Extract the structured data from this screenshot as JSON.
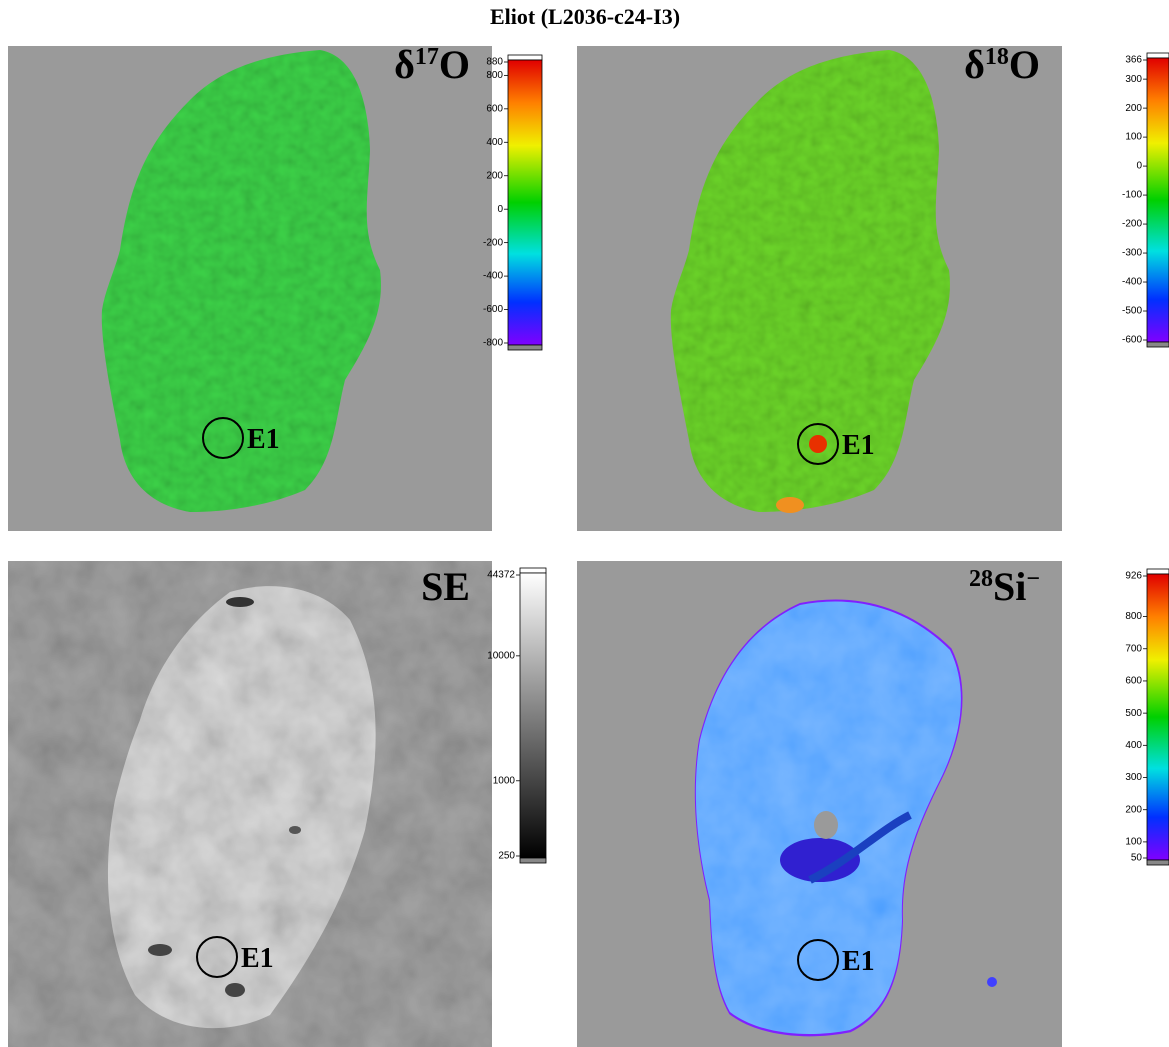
{
  "title": "Eliot (L2036-c24-I3)",
  "panels": [
    {
      "label": {
        "pre": "δ",
        "pre_sup": "17",
        "main": "O"
      },
      "marker": "E1",
      "colorbar": {
        "scale": "linear",
        "colors": "rainbow",
        "ticks": [
          880,
          800,
          600,
          400,
          200,
          0,
          -200,
          -400,
          -600,
          -800
        ]
      }
    },
    {
      "label": {
        "pre": "δ",
        "pre_sup": "18",
        "main": "O"
      },
      "marker": "E1",
      "colorbar": {
        "scale": "linear",
        "colors": "rainbow",
        "ticks": [
          366,
          300,
          200,
          100,
          0,
          -100,
          -200,
          -300,
          -400,
          -500,
          -600
        ]
      }
    },
    {
      "label": {
        "main": "SE"
      },
      "marker": "E1",
      "colorbar": {
        "scale": "log",
        "colors": "gray",
        "ticks": [
          44372,
          10000,
          1000,
          250
        ]
      }
    },
    {
      "label": {
        "pre_sup": "28",
        "main": "Si",
        "post_sup": "−"
      },
      "marker": "E1",
      "colorbar": {
        "scale": "linear",
        "colors": "rainbow",
        "ticks": [
          926,
          800,
          700,
          600,
          500,
          400,
          300,
          200,
          100,
          50
        ]
      }
    }
  ]
}
